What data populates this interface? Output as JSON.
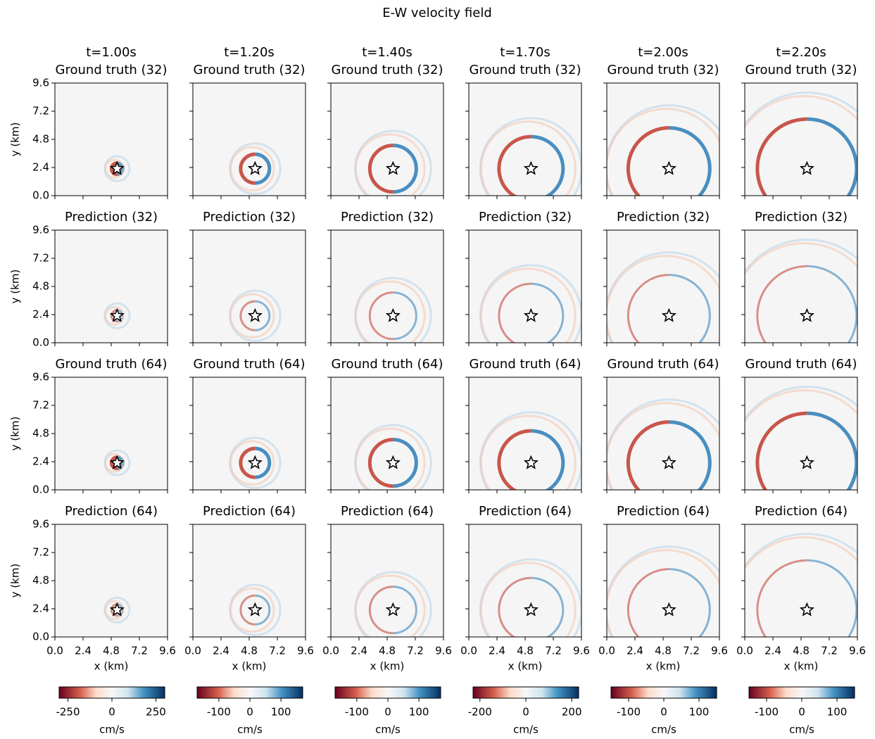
{
  "chart_data": {
    "type": "heatmap",
    "title": "E-W velocity field",
    "columns": [
      {
        "title": "t=1.00s",
        "clim": [
          -300,
          300
        ],
        "cticks": [
          -250,
          0,
          250
        ]
      },
      {
        "title": "t=1.20s",
        "clim": [
          -170,
          170
        ],
        "cticks": [
          -100,
          0,
          100
        ]
      },
      {
        "title": "t=1.40s",
        "clim": [
          -170,
          170
        ],
        "cticks": [
          -100,
          0,
          100
        ]
      },
      {
        "title": "t=1.70s",
        "clim": [
          -230,
          230
        ],
        "cticks": [
          -200,
          0,
          200
        ]
      },
      {
        "title": "t=2.00s",
        "clim": [
          -150,
          150
        ],
        "cticks": [
          -100,
          0,
          100
        ]
      },
      {
        "title": "t=2.20s",
        "clim": [
          -150,
          150
        ],
        "cticks": [
          -100,
          0,
          100
        ]
      }
    ],
    "rows": [
      "Ground truth (32)",
      "Prediction (32)",
      "Ground truth (64)",
      "Prediction (64)"
    ],
    "xlim": [
      0,
      9.6
    ],
    "ylim": [
      0,
      9.6
    ],
    "xticks": [
      {
        "value": 0,
        "label": "0.0"
      },
      2.4,
      4.8,
      7.2,
      9.6
    ],
    "yticks": [
      {
        "value": 0,
        "label": "0.0"
      },
      2.4,
      4.8,
      7.2,
      9.6
    ],
    "xlabel": "x (km)",
    "ylabel": "y (km)",
    "colorbar_label": "cm/s",
    "source": {
      "x": 5.3,
      "y": 2.3
    }
  }
}
